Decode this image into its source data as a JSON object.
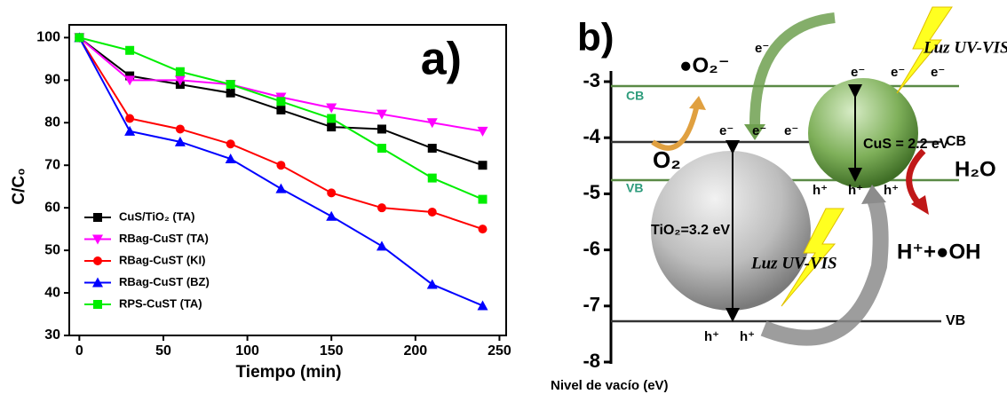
{
  "chart_data": {
    "type": "line",
    "title": "a)",
    "xlabel": "Tiempo (min)",
    "ylabel": "C/C₀",
    "x": [
      0,
      30,
      60,
      90,
      120,
      150,
      180,
      210,
      240
    ],
    "series": [
      {
        "name": "CuS/TiO₂ (TA)",
        "color": "#000000",
        "marker": "square",
        "values": [
          100,
          91,
          89,
          87,
          83,
          79,
          78.5,
          74,
          70
        ]
      },
      {
        "name": "RBag-CuST (TA)",
        "color": "#ff00ff",
        "marker": "triangle-down",
        "values": [
          100,
          90,
          90,
          89,
          86,
          83.5,
          82,
          80,
          78
        ]
      },
      {
        "name": "RBag-CuST (KI)",
        "color": "#ff0000",
        "marker": "circle",
        "values": [
          100,
          81,
          78.5,
          75,
          70,
          63.5,
          60,
          59,
          55
        ]
      },
      {
        "name": "RBag-CuST (BZ)",
        "color": "#0000ff",
        "marker": "triangle-up",
        "values": [
          100,
          78,
          75.5,
          71.5,
          64.5,
          58,
          51,
          42,
          37
        ]
      },
      {
        "name": "RPS-CuST (TA)",
        "color": "#00ee00",
        "marker": "square",
        "values": [
          100,
          97,
          92,
          89,
          85,
          81,
          74,
          67,
          62
        ]
      }
    ],
    "xlim": [
      -6,
      254
    ],
    "xticks": [
      0,
      50,
      100,
      150,
      200,
      250
    ],
    "ylim": [
      30,
      103
    ],
    "yticks": [
      30,
      40,
      50,
      60,
      70,
      80,
      90,
      100
    ],
    "grid": false
  },
  "diagram": {
    "title": "b)",
    "axis": {
      "label": "Nivel de vacío (eV)",
      "ticks": [
        -3,
        -4,
        -5,
        -6,
        -7,
        -8
      ]
    },
    "cus": {
      "cb": "CB",
      "vb": "VB",
      "gap": "CuS = 2.2 eV",
      "electrons": [
        "e⁻",
        "e⁻",
        "e⁻"
      ],
      "holes": [
        "h⁺",
        "h⁺",
        "h⁺"
      ]
    },
    "tio2": {
      "cb": "CB",
      "vb": "VB",
      "gap": "TiO₂=3.2 eV",
      "electrons": [
        "e⁻",
        "e⁻",
        "e⁻"
      ],
      "holes": [
        "h⁺",
        "h⁺"
      ]
    },
    "transfer_electron": "e⁻",
    "species": {
      "superoxide": "●O₂⁻",
      "oxygen": "O₂",
      "water": "H₂O",
      "hydroxyl": "H⁺+●OH"
    },
    "light": [
      "Luz UV-VIS",
      "Luz UV-VIS"
    ]
  }
}
